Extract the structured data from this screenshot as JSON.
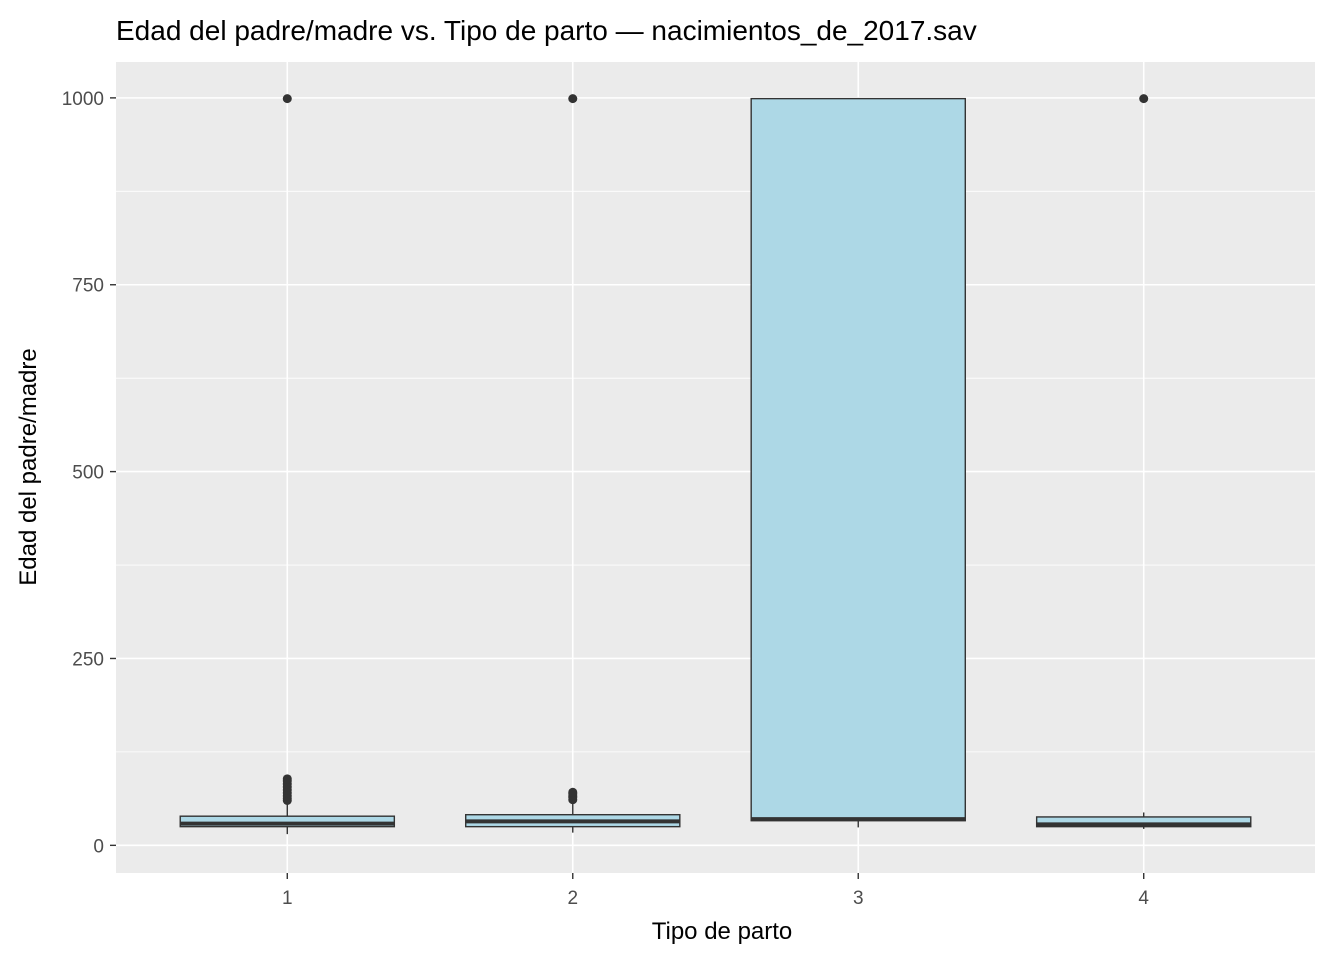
{
  "chart_data": {
    "type": "boxplot",
    "title": "Edad del padre/madre vs. Tipo de parto — nacimientos_de_2017.sav",
    "xlabel": "Tipo de parto",
    "ylabel": "Edad del padre/madre",
    "categories": [
      "1",
      "2",
      "3",
      "4"
    ],
    "ylim": [
      -37,
      1048
    ],
    "yticks": [
      0,
      250,
      500,
      750,
      1000
    ],
    "grid": true,
    "legend": "none",
    "box_fill": "#add8e6",
    "box_stroke": "#333333",
    "panel_background": "#ebebeb",
    "boxes": [
      {
        "category": "1",
        "min": 15,
        "q1": 25,
        "median": 29,
        "q3": 39,
        "max": 59,
        "outliers": [
          60,
          63,
          66,
          70,
          74,
          78,
          82,
          86,
          89,
          999
        ]
      },
      {
        "category": "2",
        "min": 17,
        "q1": 25,
        "median": 32,
        "q3": 41,
        "max": 59,
        "outliers": [
          61,
          64,
          66,
          69,
          71,
          999
        ]
      },
      {
        "category": "3",
        "min": 24,
        "q1": 33,
        "median": 35,
        "q3": 999,
        "max": 999,
        "outliers": []
      },
      {
        "category": "4",
        "min": 22,
        "q1": 25,
        "median": 28,
        "q3": 38,
        "max": 44,
        "outliers": [
          999
        ]
      }
    ]
  }
}
